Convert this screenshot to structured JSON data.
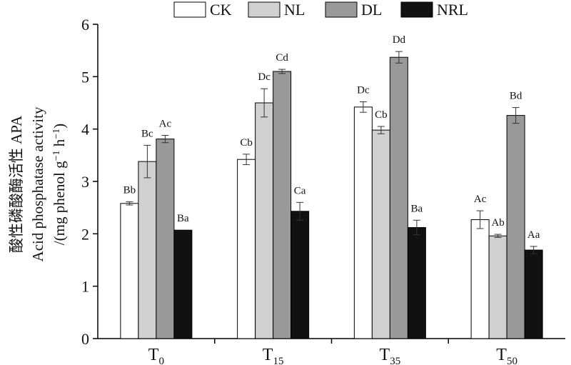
{
  "chart_data": {
    "type": "bar",
    "categories": [
      {
        "main": "T",
        "sub": "0"
      },
      {
        "main": "T",
        "sub": "15"
      },
      {
        "main": "T",
        "sub": "35"
      },
      {
        "main": "T",
        "sub": "50"
      }
    ],
    "series": [
      {
        "name": "CK",
        "color": "#ffffff",
        "values": [
          2.58,
          3.42,
          4.42,
          2.27
        ],
        "errors": [
          0.03,
          0.1,
          0.1,
          0.17
        ],
        "labels": [
          "Bb",
          "Cb",
          "Dc",
          "Ac"
        ]
      },
      {
        "name": "NL",
        "color": "#d0d0d0",
        "values": [
          3.38,
          4.5,
          3.98,
          1.96
        ],
        "errors": [
          0.31,
          0.27,
          0.07,
          0.03
        ],
        "labels": [
          "Bc",
          "Dc",
          "Cb",
          "Ab"
        ]
      },
      {
        "name": "DL",
        "color": "#999999",
        "values": [
          3.81,
          5.1,
          5.37,
          4.26
        ],
        "errors": [
          0.07,
          0.04,
          0.11,
          0.15
        ],
        "labels": [
          "Ac",
          "Cd",
          "Dd",
          "Bd"
        ]
      },
      {
        "name": "NRL",
        "color": "#111111",
        "values": [
          2.07,
          2.43,
          2.12,
          1.69
        ],
        "errors": [
          0.0,
          0.17,
          0.14,
          0.07
        ],
        "labels": [
          "Ba",
          "Ca",
          "Ba",
          "Aa"
        ]
      }
    ],
    "ylabel_lines": [
      "酸性磷酸酶活性 APA",
      "Acid phosphatase activity",
      "/(mg phenol g",
      "−1",
      " h",
      "−1",
      ")"
    ],
    "ylim": [
      0,
      6
    ],
    "yticks": [
      "0",
      "1",
      "2",
      "3",
      "4",
      "5",
      "6"
    ],
    "legend_position": "top",
    "grid": false
  }
}
